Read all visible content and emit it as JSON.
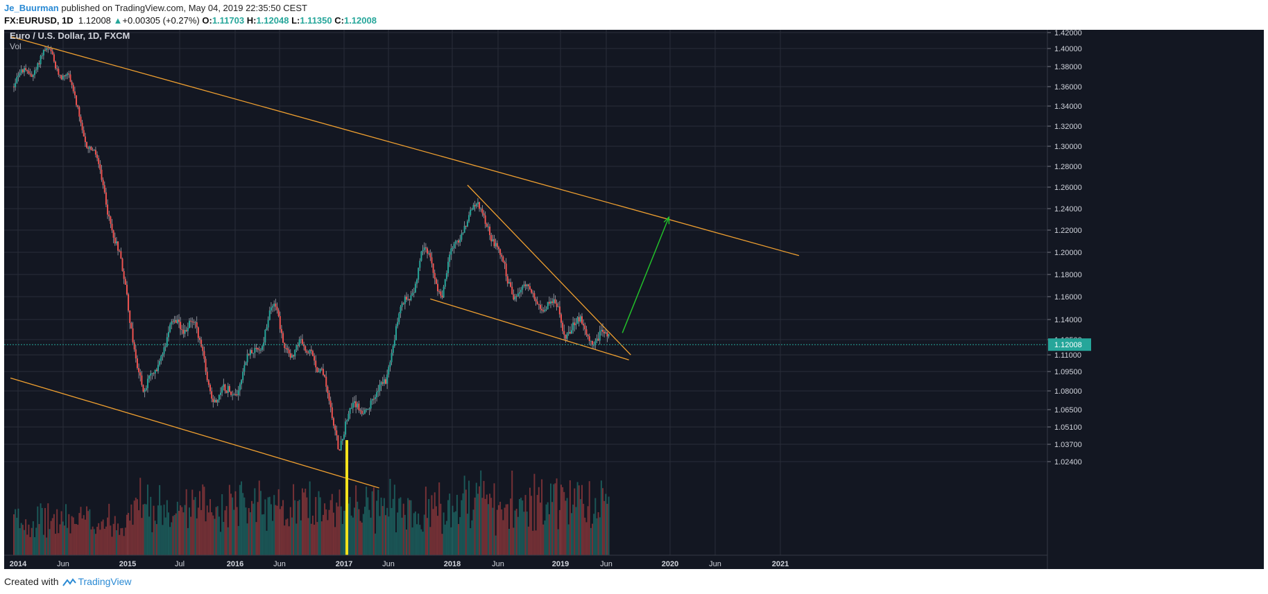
{
  "header": {
    "author": "Je_Buurman",
    "published": "published on TradingView.com, May 04, 2019 22:35:50 CEST",
    "symbol": "FX:EURUSD, 1D",
    "last": "1.12008",
    "change": "+0.00305 (+0.27%)",
    "o_label": "O:",
    "o": "1.11703",
    "h_label": "H:",
    "h": "1.12048",
    "l_label": "L:",
    "l": "1.11350",
    "c_label": "C:",
    "c": "1.12008"
  },
  "footer": {
    "created_with": "Created with",
    "brand": "TradingView"
  },
  "colors": {
    "background": "#131722",
    "grid": "#2a2e39",
    "up": "#26a69a",
    "down": "#ef5350",
    "trendline": "#f0a030",
    "arrow": "#22c02a",
    "price_line": "#26a69a",
    "marker": "#f5e31c"
  },
  "chart_data": {
    "type": "candlestick",
    "title": "Euro / U.S. Dollar, 1D, FXCM",
    "indicator": "Vol",
    "y_axis_ticks": [
      "1.42000",
      "1.40000",
      "1.38000",
      "1.36000",
      "1.34000",
      "1.32000",
      "1.30000",
      "1.28000",
      "1.26000",
      "1.24000",
      "1.22000",
      "1.20000",
      "1.18000",
      "1.16000",
      "1.14000",
      "1.12500",
      "1.11000",
      "1.09500",
      "1.08000",
      "1.06500",
      "1.05100",
      "1.03700",
      "1.02400"
    ],
    "x_axis_ticks": [
      {
        "label": "2014",
        "bold": true
      },
      {
        "label": "Jun",
        "bold": false
      },
      {
        "label": "2015",
        "bold": true
      },
      {
        "label": "Jul",
        "bold": false
      },
      {
        "label": "2016",
        "bold": true
      },
      {
        "label": "Jun",
        "bold": false
      },
      {
        "label": "2017",
        "bold": true
      },
      {
        "label": "Jun",
        "bold": false
      },
      {
        "label": "2018",
        "bold": true
      },
      {
        "label": "Jun",
        "bold": false
      },
      {
        "label": "2019",
        "bold": true
      },
      {
        "label": "Jun",
        "bold": false
      },
      {
        "label": "2020",
        "bold": true
      },
      {
        "label": "Jun",
        "bold": false
      },
      {
        "label": "2021",
        "bold": true
      }
    ],
    "last_price": "1.12008",
    "price_path": [
      [
        "2014-01",
        1.36
      ],
      [
        "2014-03",
        1.38
      ],
      [
        "2014-05",
        1.395
      ],
      [
        "2014-07",
        1.36
      ],
      [
        "2014-09",
        1.3
      ],
      [
        "2014-11",
        1.25
      ],
      [
        "2015-01",
        1.16
      ],
      [
        "2015-03",
        1.07
      ],
      [
        "2015-05",
        1.12
      ],
      [
        "2015-08",
        1.14
      ],
      [
        "2015-11",
        1.07
      ],
      [
        "2016-01",
        1.09
      ],
      [
        "2016-05",
        1.15
      ],
      [
        "2016-07",
        1.11
      ],
      [
        "2016-09",
        1.12
      ],
      [
        "2016-12",
        1.04
      ],
      [
        "2017-02",
        1.07
      ],
      [
        "2017-04",
        1.07
      ],
      [
        "2017-06",
        1.13
      ],
      [
        "2017-09",
        1.2
      ],
      [
        "2017-11",
        1.17
      ],
      [
        "2018-02",
        1.24
      ],
      [
        "2018-04",
        1.23
      ],
      [
        "2018-06",
        1.17
      ],
      [
        "2018-09",
        1.16
      ],
      [
        "2018-12",
        1.14
      ],
      [
        "2019-03",
        1.13
      ],
      [
        "2019-05",
        1.12
      ]
    ],
    "annotations": [
      {
        "type": "trendline",
        "from": [
          "2013-12-20",
          1.415
        ],
        "to": [
          "2021-01-15",
          1.197
        ]
      },
      {
        "type": "trendline",
        "from": [
          "2013-12-20",
          1.09
        ],
        "to": [
          "2017-04-10",
          1.004
        ]
      },
      {
        "type": "trendline",
        "from": [
          "2017-09-25",
          1.158
        ],
        "to": [
          "2019-07-06",
          1.1055
        ]
      },
      {
        "type": "trendline",
        "from": [
          "2018-01-25",
          1.262
        ],
        "to": [
          "2019-07-12",
          1.11
        ]
      },
      {
        "type": "arrow",
        "from": [
          "2019-06-15",
          1.13
        ],
        "to": [
          "2019-11-15",
          1.232
        ]
      }
    ]
  }
}
